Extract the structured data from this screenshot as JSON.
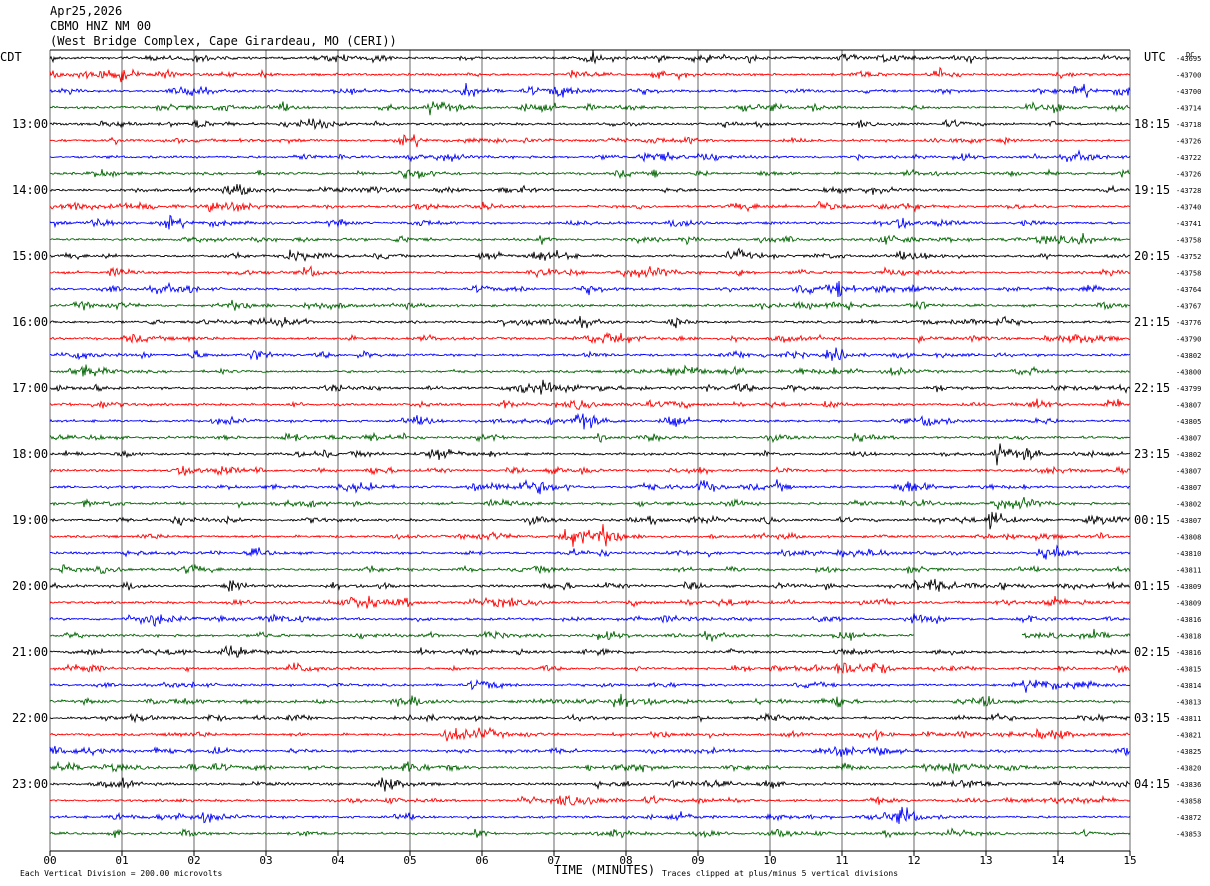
{
  "header": {
    "date": "Apr25,2026",
    "station": "CBMO HNZ NM 00",
    "location": "(West Bridge Complex, Cape Girardeau, MO (CERI))"
  },
  "chart_data": {
    "type": "line",
    "title": "Apr25,2026",
    "subtitle": "CBMO HNZ NM 00",
    "xlabel": "TIME (MINUTES)",
    "xlim": [
      0,
      15
    ],
    "x_ticks": [
      "00",
      "01",
      "02",
      "03",
      "04",
      "05",
      "06",
      "07",
      "08",
      "09",
      "10",
      "11",
      "12",
      "13",
      "14",
      "15"
    ],
    "left_axis_title": "CDT",
    "right_axis_title": "UTC",
    "dc_label": "DC",
    "left_time_labels": [
      "13:00",
      "14:00",
      "15:00",
      "16:00",
      "17:00",
      "18:00",
      "19:00",
      "20:00",
      "21:00",
      "22:00",
      "23:00"
    ],
    "right_time_labels": [
      "18:15",
      "19:15",
      "20:15",
      "21:15",
      "22:15",
      "23:15",
      "00:15",
      "01:15",
      "02:15",
      "03:15",
      "04:15"
    ],
    "label_every_n_traces": 4,
    "first_label_trace": 4,
    "trace_colors": [
      "#000000",
      "#ff0000",
      "#0000ff",
      "#006400"
    ],
    "dc_offsets": [
      "-43695",
      "-43700",
      "-43700",
      "-43714",
      "-43718",
      "-43726",
      "-43722",
      "-43726",
      "-43728",
      "-43740",
      "-43741",
      "-43758",
      "-43752",
      "-43758",
      "-43764",
      "-43767",
      "-43776",
      "-43790",
      "-43802",
      "-43800",
      "-43799",
      "-43807",
      "-43805",
      "-43807",
      "-43802",
      "-43807",
      "-43807",
      "-43802",
      "-43807",
      "-43808",
      "-43810",
      "-43811",
      "-43809",
      "-43809",
      "-43816",
      "-43818",
      "-43816",
      "-43815",
      "-43814",
      "-43813",
      "-43811",
      "-43821",
      "-43825",
      "-43820",
      "-43836",
      "-43858",
      "-43872",
      "-43853"
    ],
    "events": [
      {
        "trace": 1,
        "minute": 7.3,
        "amp": 2.0
      },
      {
        "trace": 2,
        "minute": 5.8,
        "amp": 3.0
      },
      {
        "trace": 6,
        "minute": 8.3,
        "amp": 2.2
      },
      {
        "trace": 10,
        "minute": 11.8,
        "amp": 2.2
      },
      {
        "trace": 13,
        "minute": 3.6,
        "amp": 2.4
      },
      {
        "trace": 16,
        "minute": 13.2,
        "amp": 2.4
      },
      {
        "trace": 22,
        "minute": 7.4,
        "amp": 3.0
      },
      {
        "trace": 22,
        "minute": 12.2,
        "amp": 3.0
      },
      {
        "trace": 23,
        "minute": 3.3,
        "amp": 2.0
      },
      {
        "trace": 24,
        "minute": 5.4,
        "amp": 3.2
      },
      {
        "trace": 24,
        "minute": 13.2,
        "amp": 4.5
      },
      {
        "trace": 25,
        "minute": 2.4,
        "amp": 2.4
      },
      {
        "trace": 26,
        "minute": 5.9,
        "amp": 2.2
      },
      {
        "trace": 28,
        "minute": 13.1,
        "amp": 4.0
      },
      {
        "trace": 33,
        "minute": 13.9,
        "amp": 2.2
      },
      {
        "trace": 35,
        "minute": 11.0,
        "amp": 2.6
      },
      {
        "trace": 37,
        "minute": 11.0,
        "amp": 2.6
      },
      {
        "trace": 39,
        "minute": 7.9,
        "amp": 3.0
      },
      {
        "trace": 40,
        "minute": 3.4,
        "amp": 2.0
      },
      {
        "trace": 40,
        "minute": 13.1,
        "amp": 2.0
      }
    ],
    "gap": {
      "trace": 35,
      "from_minute": 12.0,
      "to_minute": 13.5
    }
  },
  "footer": {
    "scale_text": "Each Vertical Division =  200.00 microvolts",
    "clip_text": "Traces clipped at plus/minus 5 vertical divisions"
  }
}
